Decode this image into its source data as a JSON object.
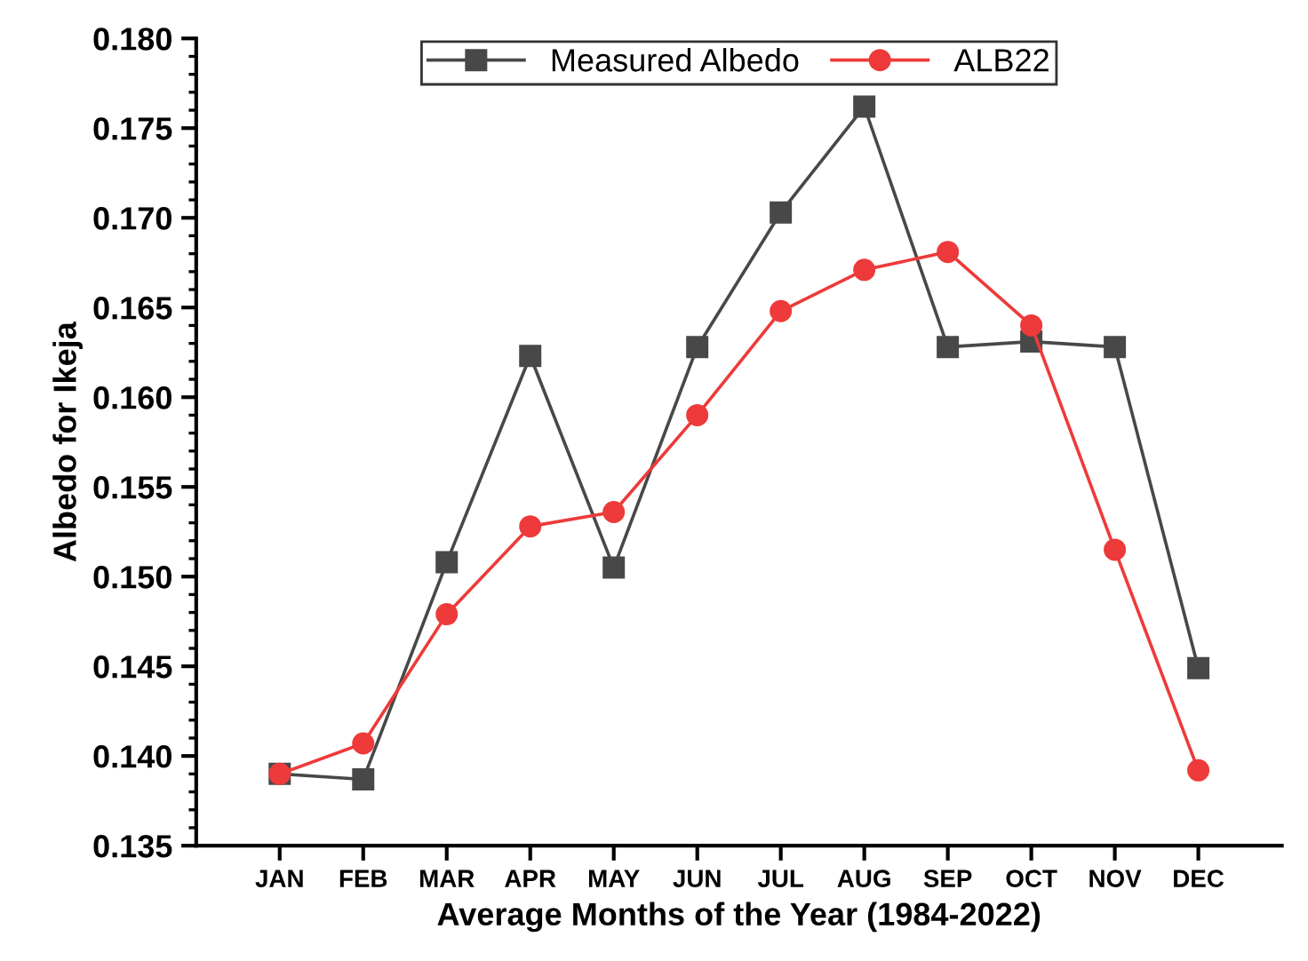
{
  "chart_data": {
    "type": "line",
    "xlabel": "Average Months of the Year (1984-2022)",
    "ylabel": "Albedo for Ikeja",
    "categories": [
      "JAN",
      "FEB",
      "MAR",
      "APR",
      "MAY",
      "JUN",
      "JUL",
      "AUG",
      "SEP",
      "OCT",
      "NOV",
      "DEC"
    ],
    "series": [
      {
        "name": "Measured Albedo",
        "color": "#484848",
        "marker": "square",
        "values": [
          0.139,
          0.1387,
          0.1508,
          0.1623,
          0.1505,
          0.1628,
          0.1703,
          0.1762,
          0.1628,
          0.1631,
          0.1628,
          0.1449
        ]
      },
      {
        "name": "ALB22",
        "color": "#ee3a3a",
        "marker": "circle",
        "values": [
          0.139,
          0.1407,
          0.1479,
          0.1528,
          0.1536,
          0.159,
          0.1648,
          0.1671,
          0.1681,
          0.164,
          0.1515,
          0.1392
        ]
      }
    ],
    "ylim": [
      0.135,
      0.18
    ],
    "yticks": [
      0.135,
      {
        "value": 0.14,
        "label": "0.140"
      },
      0.145,
      {
        "value": 0.15,
        "label": "0.150"
      },
      0.155,
      {
        "value": 0.16,
        "label": "0.160"
      },
      0.165,
      {
        "value": 0.17,
        "label": "0.170"
      },
      0.175,
      {
        "value": 0.18,
        "label": "0.180"
      }
    ],
    "grid": false,
    "legend": "top",
    "line_style": "solid"
  }
}
